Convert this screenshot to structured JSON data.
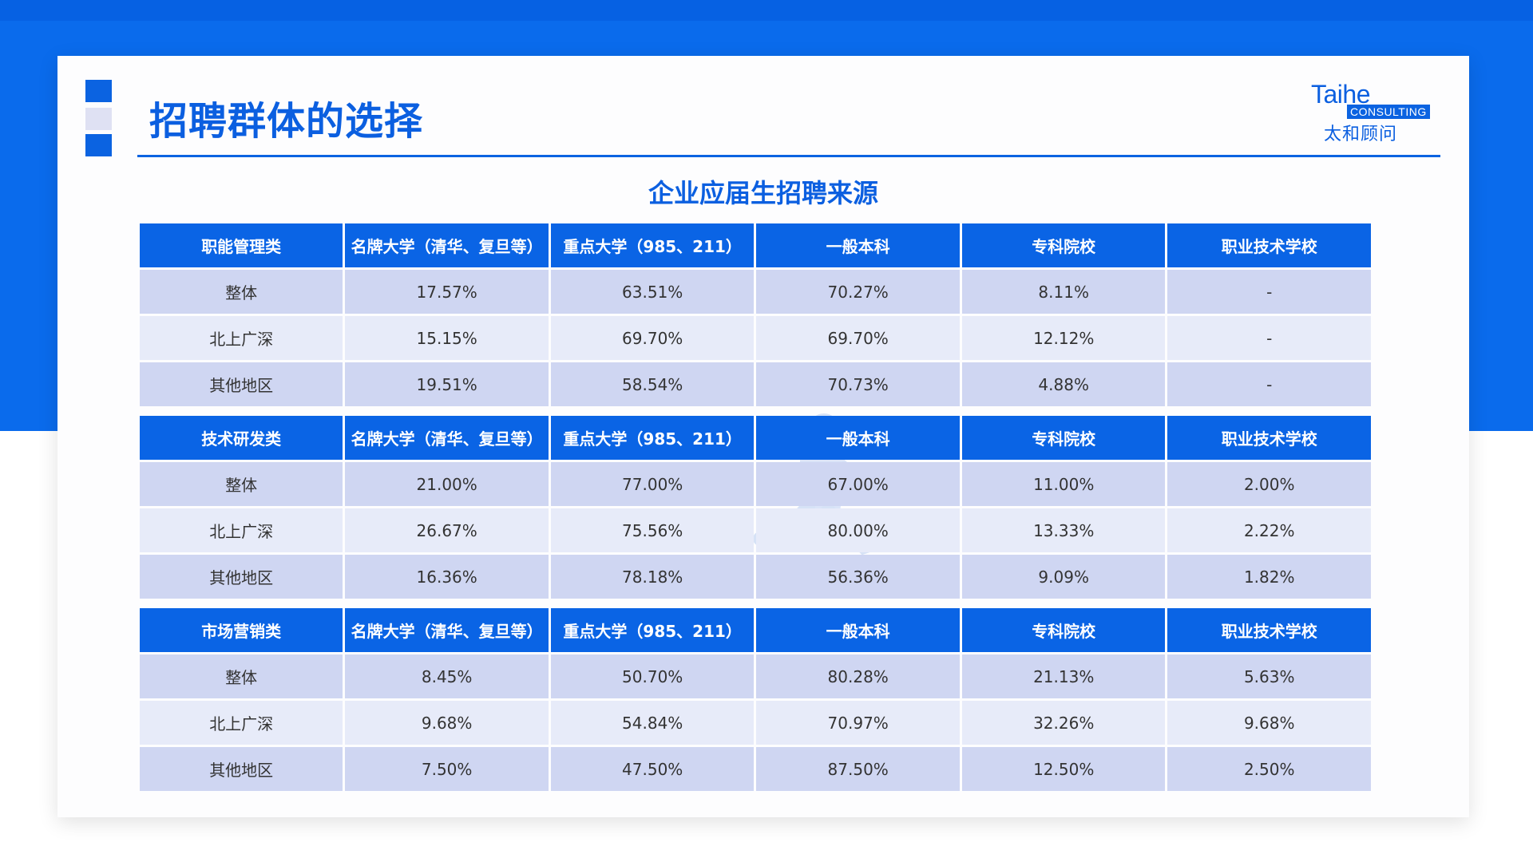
{
  "header": {
    "title": "招聘群体的选择",
    "logo_word": "Taihe",
    "logo_badge": "CONSULTING",
    "logo_cn": "太和顾问"
  },
  "subtitle": "企业应届生招聘来源",
  "columns": [
    "名牌大学（清华、复旦等）",
    "重点大学（985、211）",
    "一般本科",
    "专科院校",
    "职业技术学校"
  ],
  "blocks": [
    {
      "category": "职能管理类",
      "rows": [
        {
          "label": "整体",
          "values": [
            "17.57%",
            "63.51%",
            "70.27%",
            "8.11%",
            "-"
          ]
        },
        {
          "label": "北上广深",
          "values": [
            "15.15%",
            "69.70%",
            "69.70%",
            "12.12%",
            "-"
          ]
        },
        {
          "label": "其他地区",
          "values": [
            "19.51%",
            "58.54%",
            "70.73%",
            "4.88%",
            "-"
          ]
        }
      ]
    },
    {
      "category": "技术研发类",
      "rows": [
        {
          "label": "整体",
          "values": [
            "21.00%",
            "77.00%",
            "67.00%",
            "11.00%",
            "2.00%"
          ]
        },
        {
          "label": "北上广深",
          "values": [
            "26.67%",
            "75.56%",
            "80.00%",
            "13.33%",
            "2.22%"
          ]
        },
        {
          "label": "其他地区",
          "values": [
            "16.36%",
            "78.18%",
            "56.36%",
            "9.09%",
            "1.82%"
          ]
        }
      ]
    },
    {
      "category": "市场营销类",
      "rows": [
        {
          "label": "整体",
          "values": [
            "8.45%",
            "50.70%",
            "80.28%",
            "21.13%",
            "5.63%"
          ]
        },
        {
          "label": "北上广深",
          "values": [
            "9.68%",
            "54.84%",
            "70.97%",
            "32.26%",
            "9.68%"
          ]
        },
        {
          "label": "其他地区",
          "values": [
            "7.50%",
            "47.50%",
            "87.50%",
            "12.50%",
            "2.50%"
          ]
        }
      ]
    }
  ],
  "colors": {
    "brand_blue": "#0a64e5",
    "row_dark": "#cfd6f2",
    "row_light": "#e7ebf9"
  }
}
